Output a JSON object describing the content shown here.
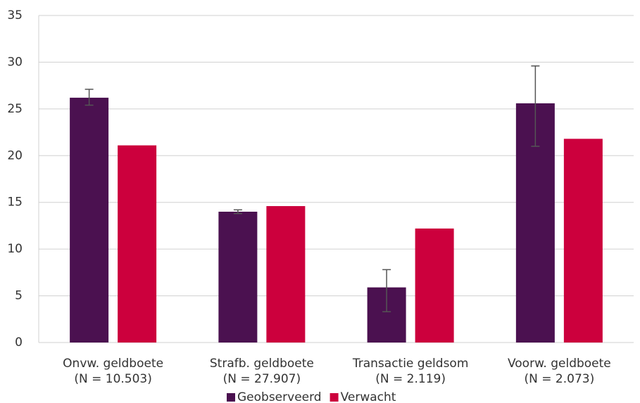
{
  "chart_data": {
    "type": "bar",
    "categories": [
      "Onvw. geldboete\n(N = 10.503)",
      "Strafb. geldboete\n(N = 27.907)",
      "Transactie geldsom\n(N = 2.119)",
      "Voorw. geldboete\n(N = 2.073)"
    ],
    "series": [
      {
        "name": "Geobserveerd",
        "color": "#4b1150",
        "values": [
          26.2,
          14.0,
          5.9,
          25.6
        ],
        "error_minus": [
          0.8,
          0.2,
          2.6,
          4.6
        ],
        "error_plus": [
          0.9,
          0.2,
          1.9,
          4.0
        ]
      },
      {
        "name": "Verwacht",
        "color": "#cc003d",
        "values": [
          21.1,
          14.6,
          12.2,
          21.8
        ]
      }
    ],
    "ylim": [
      0,
      35
    ],
    "yticks": [
      0,
      5,
      10,
      15,
      20,
      25,
      30,
      35
    ],
    "grid": true,
    "legend": "bottom"
  }
}
